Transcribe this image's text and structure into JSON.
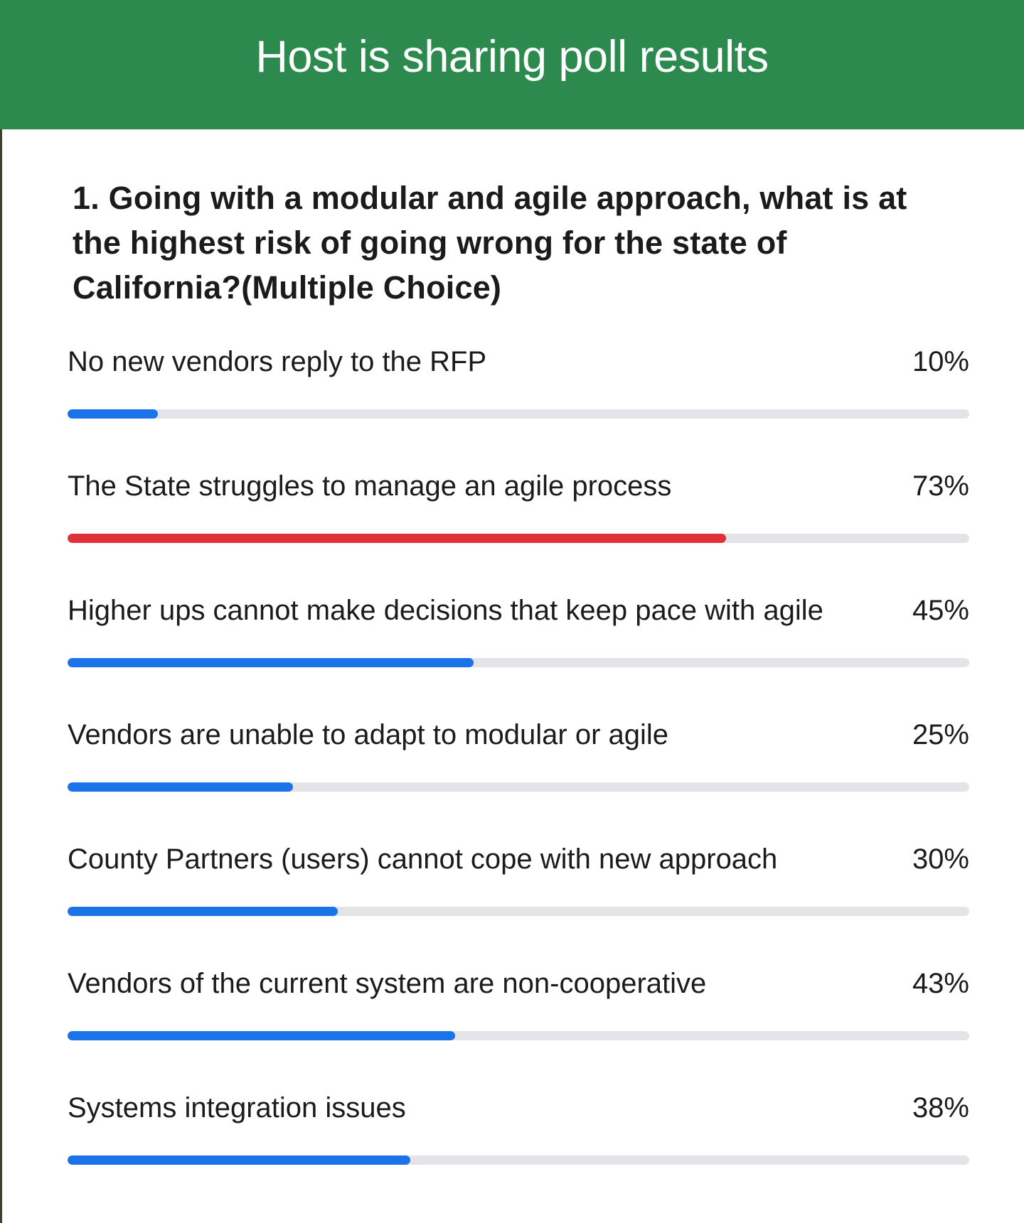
{
  "header": {
    "title": "Host is sharing poll results",
    "background_color": "#2d8a4e"
  },
  "question": {
    "text": "1. Going with a modular and agile approach, what is at the highest risk of going wrong for the state of California?(Multiple Choice)"
  },
  "colors": {
    "bar_default": "#1a73e8",
    "bar_highlight": "#e0313a",
    "bar_track": "#e3e3e8"
  },
  "options": [
    {
      "label": "No new vendors reply to the RFP",
      "percent_text": "10%",
      "percent": 10,
      "highlight": false
    },
    {
      "label": "The State struggles to manage an agile process",
      "percent_text": "73%",
      "percent": 73,
      "highlight": true
    },
    {
      "label": "Higher ups cannot make decisions that keep pace with agile",
      "percent_text": "45%",
      "percent": 45,
      "highlight": false
    },
    {
      "label": "Vendors are unable to adapt to modular or agile",
      "percent_text": "25%",
      "percent": 25,
      "highlight": false
    },
    {
      "label": "County Partners (users) cannot cope with new approach",
      "percent_text": "30%",
      "percent": 30,
      "highlight": false
    },
    {
      "label": "Vendors of the current system are non-cooperative",
      "percent_text": "43%",
      "percent": 43,
      "highlight": false
    },
    {
      "label": "Systems integration issues",
      "percent_text": "38%",
      "percent": 38,
      "highlight": false
    }
  ]
}
